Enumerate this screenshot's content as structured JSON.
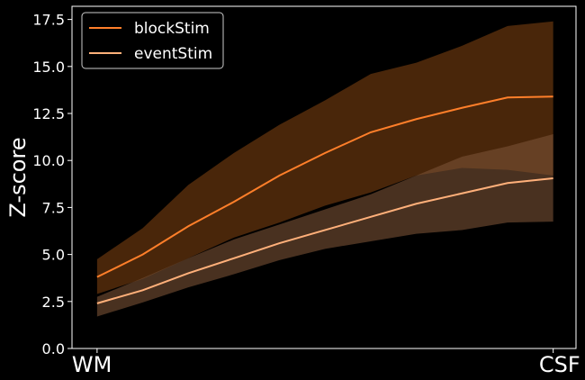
{
  "chart_data": {
    "type": "line",
    "title": "",
    "xlabel": "",
    "ylabel": "Z-score",
    "x": [
      0,
      1,
      2,
      3,
      4,
      5,
      6,
      7,
      8,
      9,
      10
    ],
    "x_tick_labels": [
      {
        "x": 0,
        "label": "WM"
      },
      {
        "x": 10,
        "label": "CSF"
      }
    ],
    "xlim": [
      -0.55,
      10.5
    ],
    "ylim": [
      0,
      18.2
    ],
    "y_ticks": [
      0.0,
      2.5,
      5.0,
      7.5,
      10.0,
      12.5,
      15.0,
      17.5
    ],
    "y_tick_labels": [
      "0.0",
      "2.5",
      "5.0",
      "7.5",
      "10.0",
      "12.5",
      "15.0",
      "17.5"
    ],
    "grid": false,
    "legend": {
      "placement": "top-left"
    },
    "series": [
      {
        "name": "blockStim",
        "color": "#ff7f2a",
        "band_color": "#7a3f10",
        "values": [
          3.8,
          5.0,
          6.5,
          7.8,
          9.2,
          10.4,
          11.5,
          12.2,
          12.8,
          13.35,
          13.4
        ],
        "lower": [
          2.9,
          3.7,
          4.8,
          5.9,
          6.7,
          7.6,
          8.3,
          9.2,
          9.6,
          9.5,
          9.2
        ],
        "upper": [
          4.75,
          6.4,
          8.7,
          10.4,
          11.9,
          13.2,
          14.6,
          15.2,
          16.1,
          17.15,
          17.4
        ]
      },
      {
        "name": "eventStim",
        "color": "#ffb07a",
        "band_color": "#7a5236",
        "values": [
          2.4,
          3.1,
          4.0,
          4.8,
          5.6,
          6.3,
          7.0,
          7.7,
          8.25,
          8.8,
          9.05
        ],
        "lower": [
          1.7,
          2.45,
          3.25,
          3.95,
          4.7,
          5.3,
          5.7,
          6.1,
          6.3,
          6.7,
          6.75
        ],
        "upper": [
          2.75,
          3.75,
          4.8,
          5.8,
          6.6,
          7.4,
          8.2,
          9.2,
          10.2,
          10.75,
          11.4
        ]
      }
    ]
  }
}
